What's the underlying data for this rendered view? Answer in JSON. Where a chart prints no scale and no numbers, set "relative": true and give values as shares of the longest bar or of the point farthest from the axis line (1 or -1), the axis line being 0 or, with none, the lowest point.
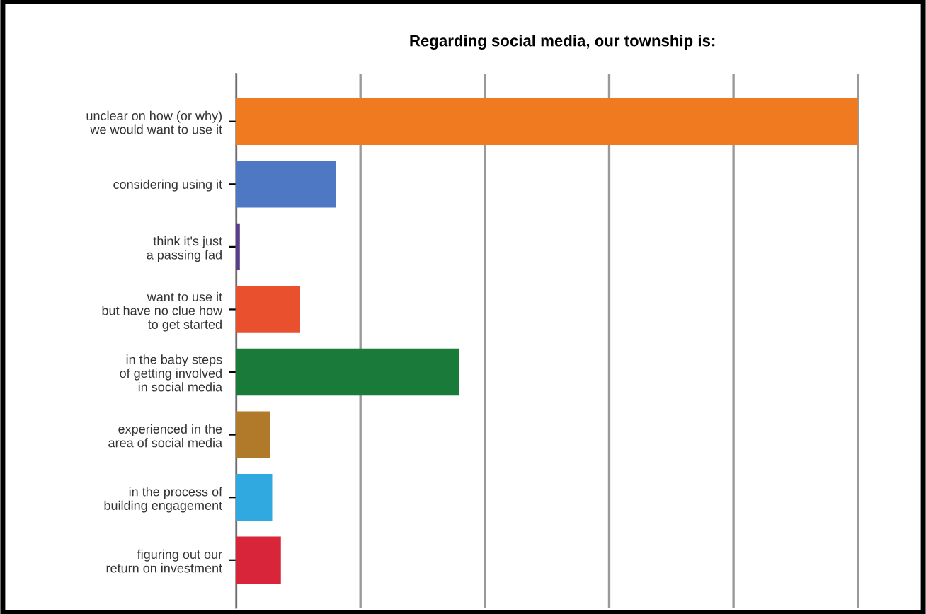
{
  "chart_data": {
    "type": "bar",
    "orientation": "horizontal",
    "relative": true,
    "grid": "x",
    "title": "Regarding social media, our township is:",
    "categories": [
      "unclear on how (or why)\nwe would want to use it",
      "considering using it",
      "think it's just\na passing fad",
      "want to use it\nbut have no clue how\nto get started",
      "in the baby steps\nof getting involved\nin social media",
      "experienced in the\narea of social media",
      "in the process of\nbuilding engagement",
      "figuring out our\nreturn on investment"
    ],
    "values": [
      1,
      0.16,
      0.006,
      0.103,
      0.359,
      0.055,
      0.058,
      0.072
    ],
    "colors": [
      "#f07a20",
      "#4f78c4",
      "#5a3d8a",
      "#e8502e",
      "#1a7a3a",
      "#b07a2a",
      "#30a8e0",
      "#d8253a"
    ]
  }
}
